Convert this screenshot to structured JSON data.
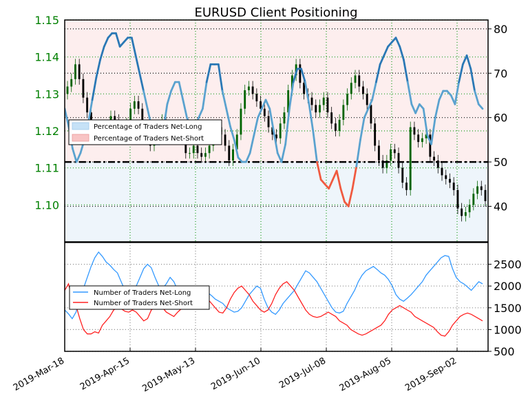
{
  "chart_data": [
    {
      "type": "line",
      "title": "EURUSD Client Positioning",
      "dates": [
        "2019-Mar-18",
        "2019-Apr-15",
        "2019-May-13",
        "2019-Jun-10",
        "2019-Jul-08",
        "2019-Aug-05",
        "2019-Sep-02"
      ],
      "price_axis": {
        "side": "left",
        "range": [
          1.09,
          1.15
        ],
        "ticks": [
          "1.15",
          "1.14",
          "1.13",
          "1.12",
          "1.11",
          "1.10"
        ]
      },
      "pct_axis": {
        "side": "right",
        "range": [
          32,
          82
        ],
        "ticks": [
          "80",
          "70",
          "60",
          "50",
          "40"
        ]
      },
      "price_candles_close": [
        1.132,
        1.134,
        1.138,
        1.134,
        1.129,
        1.125,
        1.12,
        1.121,
        1.119,
        1.118,
        1.121,
        1.124,
        1.123,
        1.121,
        1.119,
        1.122,
        1.126,
        1.128,
        1.126,
        1.121,
        1.119,
        1.116,
        1.118,
        1.121,
        1.123,
        1.12,
        1.119,
        1.12,
        1.121,
        1.118,
        1.114,
        1.114,
        1.116,
        1.114,
        1.113,
        1.114,
        1.116,
        1.12,
        1.121,
        1.119,
        1.116,
        1.112,
        1.115,
        1.119,
        1.126,
        1.131,
        1.132,
        1.13,
        1.128,
        1.126,
        1.124,
        1.121,
        1.119,
        1.118,
        1.122,
        1.125,
        1.131,
        1.135,
        1.138,
        1.133,
        1.13,
        1.129,
        1.127,
        1.125,
        1.127,
        1.129,
        1.125,
        1.122,
        1.12,
        1.123,
        1.127,
        1.13,
        1.133,
        1.135,
        1.132,
        1.13,
        1.127,
        1.122,
        1.116,
        1.112,
        1.11,
        1.112,
        1.115,
        1.114,
        1.11,
        1.106,
        1.104,
        1.121,
        1.119,
        1.117,
        1.118,
        1.119,
        1.113,
        1.112,
        1.11,
        1.108,
        1.107,
        1.106,
        1.104,
        1.099,
        1.097,
        1.098,
        1.1,
        1.103,
        1.105,
        1.104,
        1.101
      ],
      "percent_net_long": [
        62,
        58,
        53,
        50,
        52,
        55,
        59,
        64,
        69,
        73,
        76,
        78,
        79,
        79,
        76,
        77,
        78,
        78,
        74,
        70,
        66,
        62,
        58,
        54,
        54,
        57,
        63,
        66,
        68,
        68,
        64,
        60,
        58,
        58,
        60,
        62,
        68,
        72,
        72,
        72,
        66,
        62,
        58,
        55,
        51,
        50,
        50,
        52,
        56,
        60,
        62,
        64,
        62,
        57,
        52,
        50,
        54,
        62,
        68,
        71,
        71,
        68,
        63,
        57,
        50,
        46,
        45,
        44,
        46,
        48,
        44,
        41,
        40,
        44,
        49,
        55,
        60,
        62,
        64,
        68,
        72,
        74,
        76,
        77,
        78,
        76,
        73,
        68,
        63,
        61,
        63,
        62,
        56,
        54,
        60,
        64,
        66,
        66,
        65,
        63,
        68,
        72,
        74,
        71,
        66,
        63,
        62
      ],
      "series": [
        {
          "name": "Percentage of Traders Net-Long",
          "color": "#c6e2f7"
        },
        {
          "name": "Percentage of Traders Net-Short",
          "color": "#f8c4c4"
        }
      ],
      "pct_threshold": 50
    },
    {
      "type": "line",
      "count_axis": {
        "side": "right",
        "range": [
          500,
          3000
        ],
        "ticks": [
          "2500",
          "2000",
          "1500",
          "1000",
          "500"
        ]
      },
      "series": [
        {
          "name": "Number of Traders Net-Long",
          "color": "#3399ff",
          "values": [
            1450,
            1360,
            1250,
            1400,
            1700,
            1950,
            2200,
            2450,
            2650,
            2780,
            2680,
            2550,
            2480,
            2380,
            2300,
            2100,
            1900,
            1800,
            1850,
            2000,
            2200,
            2400,
            2500,
            2420,
            2200,
            2000,
            1950,
            2050,
            2200,
            2100,
            1900,
            1800,
            1750,
            1700,
            1750,
            1820,
            1900,
            1950,
            1850,
            1780,
            1700,
            1650,
            1600,
            1500,
            1450,
            1400,
            1420,
            1500,
            1650,
            1800,
            1900,
            2000,
            1950,
            1700,
            1500,
            1400,
            1350,
            1450,
            1600,
            1700,
            1800,
            1900,
            2050,
            2200,
            2350,
            2300,
            2200,
            2100,
            1950,
            1800,
            1650,
            1500,
            1400,
            1380,
            1420,
            1600,
            1750,
            1900,
            2100,
            2250,
            2350,
            2400,
            2450,
            2380,
            2300,
            2250,
            2150,
            2000,
            1800,
            1700,
            1650,
            1720,
            1800,
            1900,
            2000,
            2100,
            2250,
            2350,
            2450,
            2550,
            2650,
            2700,
            2680,
            2400,
            2200,
            2100,
            2050,
            1980,
            1900,
            2000,
            2100,
            2050
          ]
        },
        {
          "name": "Number of Traders Net-Short",
          "color": "#ff2020",
          "values": [
            1900,
            2050,
            1700,
            1550,
            1250,
            1000,
            900,
            900,
            950,
            920,
            1100,
            1200,
            1300,
            1450,
            1500,
            1480,
            1420,
            1400,
            1450,
            1400,
            1300,
            1200,
            1250,
            1450,
            1500,
            1550,
            1500,
            1400,
            1350,
            1300,
            1400,
            1480,
            1500,
            1550,
            1600,
            1650,
            1700,
            1750,
            1700,
            1600,
            1500,
            1400,
            1380,
            1500,
            1700,
            1850,
            1950,
            2000,
            1900,
            1800,
            1650,
            1550,
            1450,
            1400,
            1450,
            1600,
            1800,
            1950,
            2050,
            2100,
            2000,
            1900,
            1750,
            1600,
            1450,
            1350,
            1300,
            1280,
            1300,
            1350,
            1400,
            1350,
            1300,
            1200,
            1150,
            1100,
            1000,
            950,
            900,
            870,
            900,
            950,
            1000,
            1050,
            1100,
            1200,
            1350,
            1450,
            1500,
            1550,
            1500,
            1450,
            1400,
            1300,
            1250,
            1200,
            1150,
            1100,
            1050,
            950,
            870,
            850,
            950,
            1100,
            1200,
            1300,
            1350,
            1380,
            1350,
            1300,
            1250,
            1200
          ]
        }
      ]
    }
  ]
}
